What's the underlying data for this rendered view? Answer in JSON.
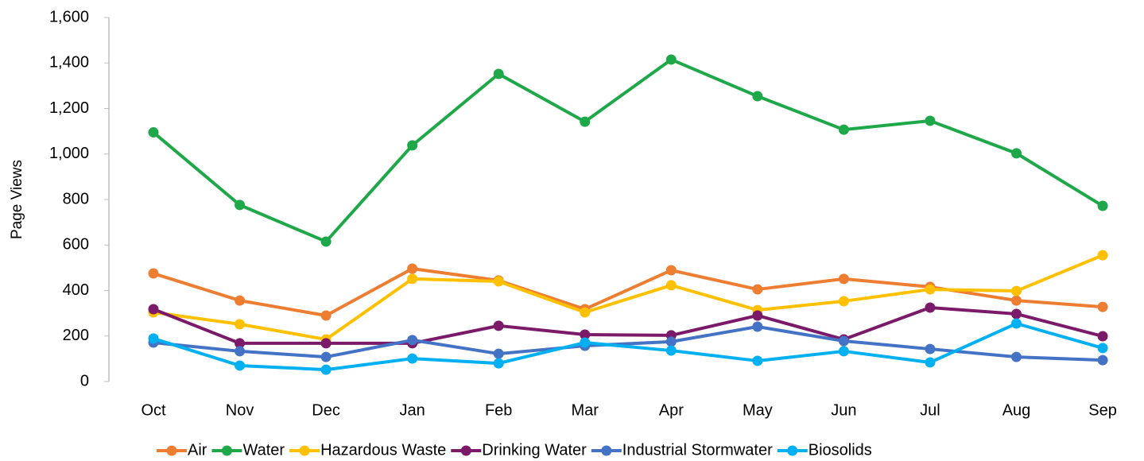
{
  "chart_data": {
    "type": "line",
    "y_label": "Page Views",
    "categories": [
      "Oct",
      "Nov",
      "Dec",
      "Jan",
      "Feb",
      "Mar",
      "Apr",
      "May",
      "Jun",
      "Jul",
      "Aug",
      "Sep"
    ],
    "series": [
      {
        "name": "Air",
        "color": "#ed7d31",
        "values": [
          475,
          356,
          290,
          496,
          444,
          318,
          489,
          405,
          451,
          416,
          356,
          328
        ]
      },
      {
        "name": "Water",
        "color": "#1fa84a",
        "values": [
          1095,
          776,
          615,
          1038,
          1352,
          1142,
          1415,
          1254,
          1107,
          1146,
          1003,
          772
        ]
      },
      {
        "name": "Hazardous Waste",
        "color": "#ffc000",
        "values": [
          304,
          252,
          185,
          451,
          440,
          304,
          423,
          314,
          353,
          405,
          398,
          555
        ]
      },
      {
        "name": "Drinking Water",
        "color": "#7a1a68",
        "values": [
          318,
          168,
          168,
          168,
          245,
          206,
          203,
          290,
          185,
          325,
          297,
          199
        ]
      },
      {
        "name": "Industrial Stormwater",
        "color": "#4472c4",
        "values": [
          171,
          133,
          108,
          182,
          122,
          157,
          175,
          241,
          178,
          143,
          108,
          94
        ]
      },
      {
        "name": "Biosolids",
        "color": "#00b0f0",
        "values": [
          189,
          70,
          52,
          101,
          80,
          171,
          136,
          91,
          133,
          84,
          255,
          147
        ]
      }
    ],
    "ylim": [
      0,
      1600
    ],
    "yticks": [
      0,
      200,
      400,
      600,
      800,
      {
        "value": 1000,
        "label": "1,000"
      },
      {
        "value": 1200,
        "label": "1,200"
      },
      {
        "value": 1400,
        "label": "1,400"
      },
      {
        "value": 1600,
        "label": "1,600"
      }
    ],
    "legend": "bottom"
  }
}
